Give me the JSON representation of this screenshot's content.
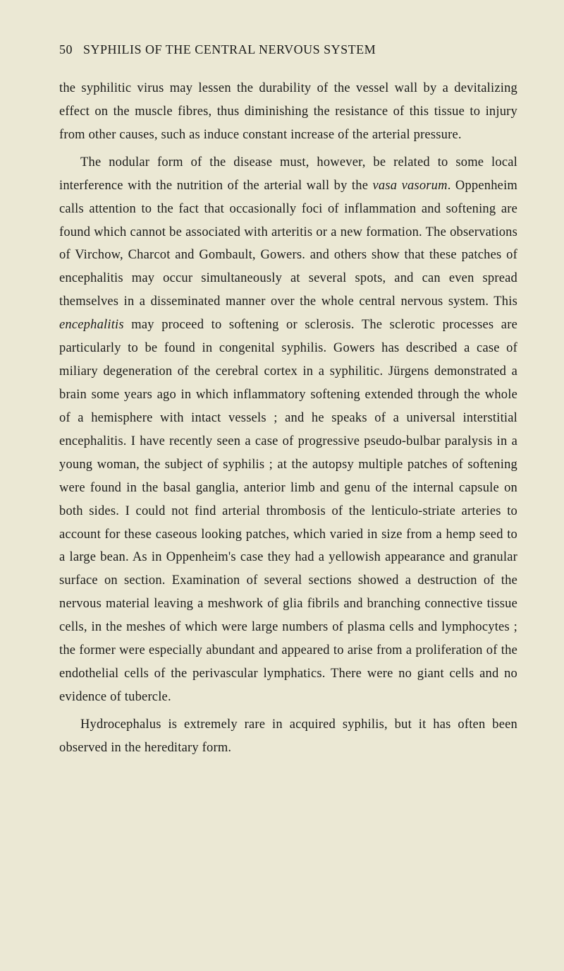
{
  "header": {
    "page_number": "50",
    "title": "SYPHILIS OF THE CENTRAL NERVOUS SYSTEM"
  },
  "segments": {
    "p1": "the syphilitic virus may lessen the durability of the vessel wall by a devitalizing effect on the muscle fibres, thus diminishing the resistance of this tissue to injury from other causes, such as induce constant increase of the arterial pressure.",
    "p2a": "The nodular form of the disease must, however, be related to some local interference with the nutrition of the arterial wall by the ",
    "p2_italic1": "vasa vasorum",
    "p2b": ". Oppenheim calls attention to the fact that occasionally foci of inflammation and softening are found which cannot be associated with arteritis or a new formation. The observations of Virchow, Charcot and Gombault, Gowers. and others show that these patches of encephalitis may occur simultaneously at several spots, and can even spread themselves in a disseminated manner over the whole central nervous system. This ",
    "p2_italic2": "encephalitis",
    "p2c": " may proceed to softening or sclerosis. The sclerotic processes are particularly to be found in congenital syphilis. Gowers has described a case of miliary degeneration of the cerebral cortex in a syphilitic. Jürgens demonstrated a brain some years ago in which inflammatory softening extended through the whole of a hemisphere with intact vessels ; and he speaks of a universal interstitial encephalitis. I have recently seen a case of progressive pseudo-bulbar paralysis in a young woman, the subject of syphilis ; at the autopsy multiple patches of softening were found in the basal ganglia, anterior limb and genu of the internal capsule on both sides. I could not find arterial thrombosis of the lenticulo-striate arteries to account for these caseous looking patches, which varied in size from a hemp seed to a large bean. As in Oppenheim's case they had a yellowish appearance and granular surface on section. Examination of several sections showed a destruction of the nervous material leaving a meshwork of glia fibrils and branching connective tissue cells, in the meshes of which were large numbers of plasma cells and lymphocytes ; the former were especially abundant and appeared to arise from a proliferation of the endothelial cells of the perivascular lymphatics. There were no giant cells and no evidence of tubercle.",
    "p3": "Hydrocephalus is extremely rare in acquired syphilis, but it has often been observed in the hereditary form."
  }
}
